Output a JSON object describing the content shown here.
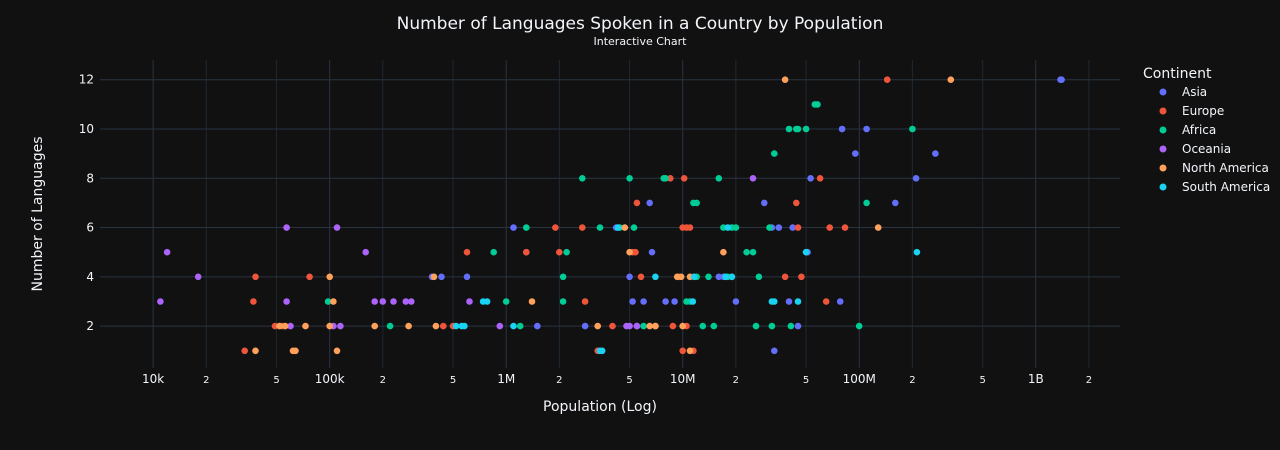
{
  "chart_data": {
    "type": "scatter",
    "title": "Number of Languages Spoken in a Country by Population",
    "subtitle": "Interactive Chart",
    "xlabel": "Population (Log)",
    "ylabel": "Number of Languages",
    "x_scale": "log",
    "xlim": [
      5000,
      3000000000
    ],
    "ylim": [
      0.3,
      12.8
    ],
    "grid": true,
    "legend_title": "Continent",
    "legend_position": "right",
    "x_tick_labels": [
      {
        "value": 10000,
        "label": "10k"
      },
      {
        "value": 20000,
        "label": "2"
      },
      {
        "value": 50000,
        "label": "5"
      },
      {
        "value": 100000,
        "label": "100k"
      },
      {
        "value": 200000,
        "label": "2"
      },
      {
        "value": 500000,
        "label": "5"
      },
      {
        "value": 1000000,
        "label": "1M"
      },
      {
        "value": 2000000,
        "label": "2"
      },
      {
        "value": 5000000,
        "label": "5"
      },
      {
        "value": 10000000,
        "label": "10M"
      },
      {
        "value": 20000000,
        "label": "2"
      },
      {
        "value": 50000000,
        "label": "5"
      },
      {
        "value": 100000000,
        "label": "100M"
      },
      {
        "value": 200000000,
        "label": "2"
      },
      {
        "value": 500000000,
        "label": "5"
      },
      {
        "value": 1000000000,
        "label": "1B"
      },
      {
        "value": 2000000000,
        "label": "2"
      }
    ],
    "y_ticks": [
      2,
      4,
      6,
      8,
      10,
      12
    ],
    "series": [
      {
        "name": "Asia",
        "color": "#636efa",
        "points": [
          [
            1400000000,
            12
          ],
          [
            1380000000,
            12
          ],
          [
            270000000,
            9
          ],
          [
            210000000,
            8
          ],
          [
            160000000,
            7
          ],
          [
            110000000,
            10
          ],
          [
            95000000,
            9
          ],
          [
            80000000,
            10
          ],
          [
            78000000,
            3
          ],
          [
            53000000,
            8
          ],
          [
            50000000,
            5
          ],
          [
            51000000,
            5
          ],
          [
            45000000,
            2
          ],
          [
            42000000,
            6
          ],
          [
            40000000,
            3
          ],
          [
            35000000,
            6
          ],
          [
            33000000,
            1
          ],
          [
            32000000,
            6
          ],
          [
            29000000,
            7
          ],
          [
            20000000,
            3
          ],
          [
            17000000,
            4
          ],
          [
            16000000,
            4
          ],
          [
            9000000,
            3
          ],
          [
            8000000,
            3
          ],
          [
            6700000,
            5
          ],
          [
            6000000,
            3
          ],
          [
            5500000,
            2
          ],
          [
            5000000,
            4
          ],
          [
            4200000,
            6
          ],
          [
            2800000,
            2
          ],
          [
            1500000,
            2
          ],
          [
            1300000,
            5
          ],
          [
            1100000,
            6
          ],
          [
            600000,
            4
          ],
          [
            430000,
            4
          ],
          [
            380000,
            4
          ],
          [
            6500000,
            7
          ],
          [
            5200000,
            3
          ]
        ]
      },
      {
        "name": "Europe",
        "color": "#ef553b",
        "points": [
          [
            144000000,
            12
          ],
          [
            83000000,
            6
          ],
          [
            68000000,
            6
          ],
          [
            65000000,
            3
          ],
          [
            60000000,
            8
          ],
          [
            47000000,
            4
          ],
          [
            44000000,
            7
          ],
          [
            45000000,
            6
          ],
          [
            38000000,
            4
          ],
          [
            19000000,
            4
          ],
          [
            11000000,
            6
          ],
          [
            11500000,
            1
          ],
          [
            10500000,
            2
          ],
          [
            10200000,
            8
          ],
          [
            10000000,
            6
          ],
          [
            10000000,
            1
          ],
          [
            9500000,
            4
          ],
          [
            8800000,
            2
          ],
          [
            8500000,
            8
          ],
          [
            7000000,
            2
          ],
          [
            5800000,
            4
          ],
          [
            5500000,
            7
          ],
          [
            5400000,
            5
          ],
          [
            5200000,
            5
          ],
          [
            4000000,
            2
          ],
          [
            3300000,
            1
          ],
          [
            2800000,
            3
          ],
          [
            2700000,
            6
          ],
          [
            2000000,
            5
          ],
          [
            1900000,
            6
          ],
          [
            1300000,
            5
          ],
          [
            600000,
            5
          ],
          [
            500000,
            2
          ],
          [
            440000,
            2
          ],
          [
            77000,
            4
          ],
          [
            38000,
            4
          ],
          [
            37000,
            3
          ],
          [
            33000,
            1
          ],
          [
            49000,
            2
          ],
          [
            54000,
            2
          ],
          [
            10500000,
            6
          ]
        ]
      },
      {
        "name": "Africa",
        "color": "#00cc96",
        "points": [
          [
            200000000,
            10
          ],
          [
            110000000,
            7
          ],
          [
            100000000,
            2
          ],
          [
            58000000,
            11
          ],
          [
            56000000,
            11
          ],
          [
            50000000,
            10
          ],
          [
            45000000,
            10
          ],
          [
            44000000,
            10
          ],
          [
            40000000,
            10
          ],
          [
            41000000,
            2
          ],
          [
            33000000,
            9
          ],
          [
            32000000,
            2
          ],
          [
            31000000,
            6
          ],
          [
            27000000,
            4
          ],
          [
            26000000,
            2
          ],
          [
            25000000,
            5
          ],
          [
            23000000,
            5
          ],
          [
            20000000,
            6
          ],
          [
            19000000,
            6
          ],
          [
            18000000,
            4
          ],
          [
            17000000,
            6
          ],
          [
            16000000,
            8
          ],
          [
            15000000,
            2
          ],
          [
            14000000,
            4
          ],
          [
            13000000,
            2
          ],
          [
            12000000,
            7
          ],
          [
            11500000,
            7
          ],
          [
            11000000,
            3
          ],
          [
            10500000,
            3
          ],
          [
            8000000,
            8
          ],
          [
            7800000,
            8
          ],
          [
            6000000,
            2
          ],
          [
            5300000,
            6
          ],
          [
            5000000,
            8
          ],
          [
            4400000,
            6
          ],
          [
            3400000,
            6
          ],
          [
            2700000,
            8
          ],
          [
            2200000,
            5
          ],
          [
            2100000,
            3
          ],
          [
            2100000,
            4
          ],
          [
            1300000,
            6
          ],
          [
            1200000,
            2
          ],
          [
            1000000,
            3
          ],
          [
            850000,
            5
          ],
          [
            220000,
            2
          ],
          [
            98000,
            3
          ],
          [
            12000000,
            4
          ]
        ]
      },
      {
        "name": "Oceania",
        "color": "#ab63fa",
        "points": [
          [
            25000000,
            8
          ],
          [
            5000000,
            2
          ],
          [
            4800000,
            2
          ],
          [
            620000,
            3
          ],
          [
            290000,
            3
          ],
          [
            270000,
            3
          ],
          [
            230000,
            3
          ],
          [
            200000,
            3
          ],
          [
            180000,
            3
          ],
          [
            115000,
            2
          ],
          [
            110000,
            6
          ],
          [
            105000,
            2
          ],
          [
            57000,
            6
          ],
          [
            57000,
            3
          ],
          [
            60000,
            2
          ],
          [
            11000,
            3
          ],
          [
            12000,
            5
          ],
          [
            18000,
            4
          ],
          [
            160000,
            5
          ],
          [
            920000,
            2
          ],
          [
            5500000,
            2
          ]
        ]
      },
      {
        "name": "North America",
        "color": "#ffa15a",
        "points": [
          [
            330000000,
            12
          ],
          [
            38000000,
            12
          ],
          [
            128000000,
            6
          ],
          [
            17000000,
            5
          ],
          [
            11000000,
            1
          ],
          [
            11000000,
            4
          ],
          [
            10000000,
            2
          ],
          [
            9800000,
            4
          ],
          [
            9300000,
            4
          ],
          [
            7000000,
            2
          ],
          [
            6500000,
            2
          ],
          [
            5000000,
            5
          ],
          [
            4700000,
            6
          ],
          [
            3300000,
            2
          ],
          [
            1400000,
            3
          ],
          [
            390000,
            4
          ],
          [
            280000,
            2
          ],
          [
            400000,
            2
          ],
          [
            100000,
            4
          ],
          [
            105000,
            3
          ],
          [
            110000,
            1
          ],
          [
            100000,
            2
          ],
          [
            73000,
            2
          ],
          [
            64000,
            1
          ],
          [
            62000,
            1
          ],
          [
            56000,
            2
          ],
          [
            38000,
            1
          ],
          [
            180000,
            2
          ],
          [
            52000,
            2
          ]
        ]
      },
      {
        "name": "South America",
        "color": "#19d3f3",
        "points": [
          [
            212000000,
            5
          ],
          [
            50000000,
            5
          ],
          [
            45000000,
            3
          ],
          [
            33000000,
            3
          ],
          [
            32000000,
            3
          ],
          [
            19000000,
            4
          ],
          [
            18000000,
            6
          ],
          [
            17500000,
            4
          ],
          [
            11600000,
            4
          ],
          [
            11400000,
            3
          ],
          [
            7000000,
            4
          ],
          [
            4300000,
            6
          ],
          [
            3500000,
            1
          ],
          [
            3400000,
            1
          ],
          [
            1100000,
            2
          ],
          [
            780000,
            3
          ],
          [
            740000,
            3
          ],
          [
            580000,
            2
          ],
          [
            560000,
            2
          ],
          [
            520000,
            2
          ]
        ]
      }
    ]
  }
}
